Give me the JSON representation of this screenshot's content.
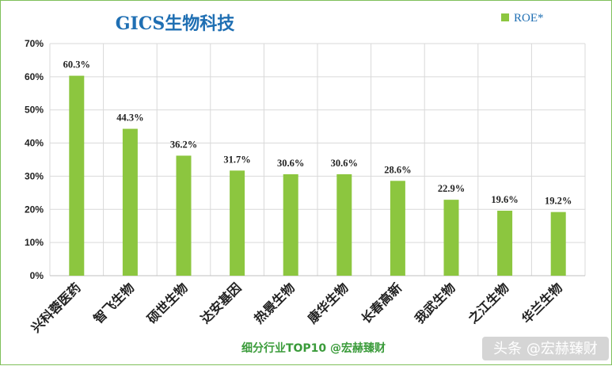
{
  "chart_data": {
    "type": "bar",
    "title": "GICS生物科技",
    "legend": {
      "entries": [
        "ROE*"
      ],
      "placement": "top-right"
    },
    "categories": [
      "兴科蓉医药",
      "智飞生物",
      "硕世生物",
      "达安基因",
      "热景生物",
      "康华生物",
      "长春高新",
      "我武生物",
      "之江生物",
      "华兰生物"
    ],
    "series": [
      {
        "name": "ROE*",
        "values": [
          60.3,
          44.3,
          36.2,
          31.7,
          30.6,
          30.6,
          28.6,
          22.9,
          19.6,
          19.2
        ]
      }
    ],
    "data_labels": [
      "60.3%",
      "44.3%",
      "36.2%",
      "31.7%",
      "30.6%",
      "30.6%",
      "28.6%",
      "22.9%",
      "19.6%",
      "19.2%"
    ],
    "y_ticks": [
      "0%",
      "10%",
      "20%",
      "30%",
      "40%",
      "50%",
      "60%",
      "70%"
    ],
    "ylim": [
      0,
      70
    ],
    "grid": true,
    "colors": {
      "bar": "#8cc63f",
      "title": "#1f6fb3",
      "footer": "#3a9b3a",
      "grid": "#d9d9d9"
    }
  },
  "footer_text": "细分行业TOP10 @宏赫臻财",
  "watermark_text": "头条 @宏赫臻财"
}
